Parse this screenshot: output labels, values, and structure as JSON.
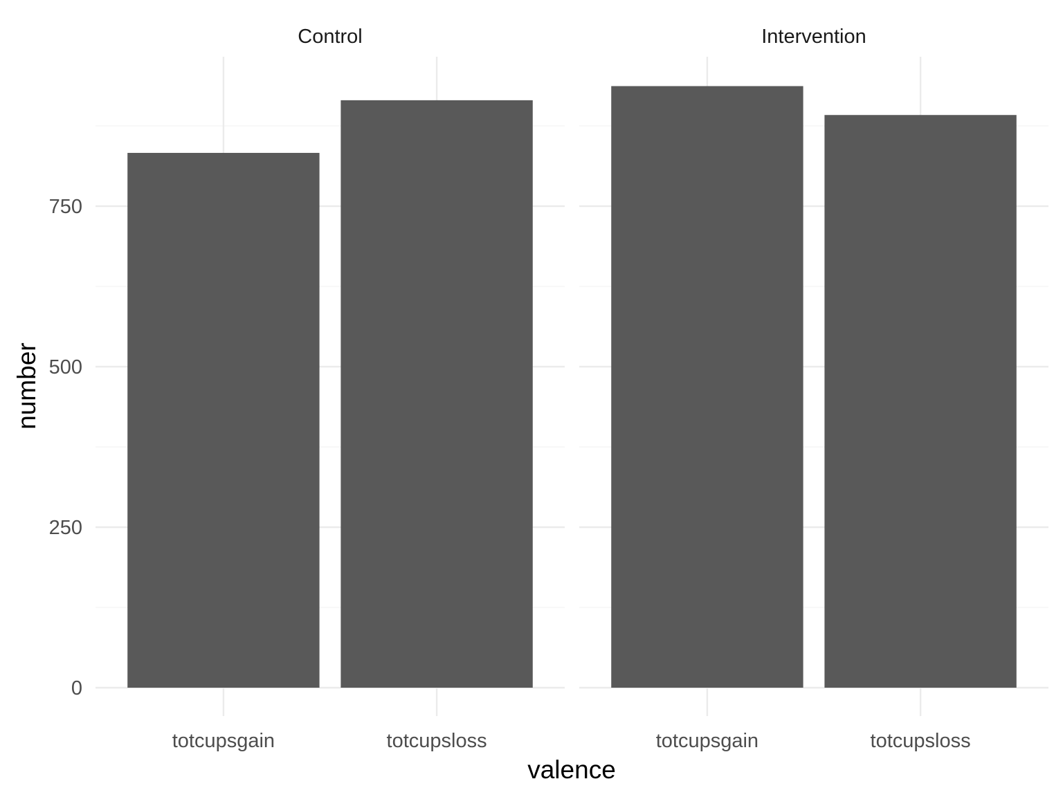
{
  "chart_data": {
    "type": "bar",
    "facet_by": "group",
    "panels": [
      {
        "name": "Control",
        "categories": [
          "totcupsgain",
          "totcupsloss"
        ],
        "values": [
          833,
          915
        ]
      },
      {
        "name": "Intervention",
        "categories": [
          "totcupsgain",
          "totcupsloss"
        ],
        "values": [
          937,
          892
        ]
      }
    ],
    "xlabel": "valence",
    "ylabel": "number",
    "ylim": [
      0,
      937
    ],
    "yticks": [
      0,
      250,
      500,
      750
    ],
    "ytick_labels": [
      "0",
      "250",
      "500",
      "750"
    ],
    "minor_yticks": [
      125,
      375,
      625,
      875
    ],
    "grid": true,
    "bar_color": "#595959",
    "grid_color": "#ebebeb",
    "background": "#ffffff"
  }
}
